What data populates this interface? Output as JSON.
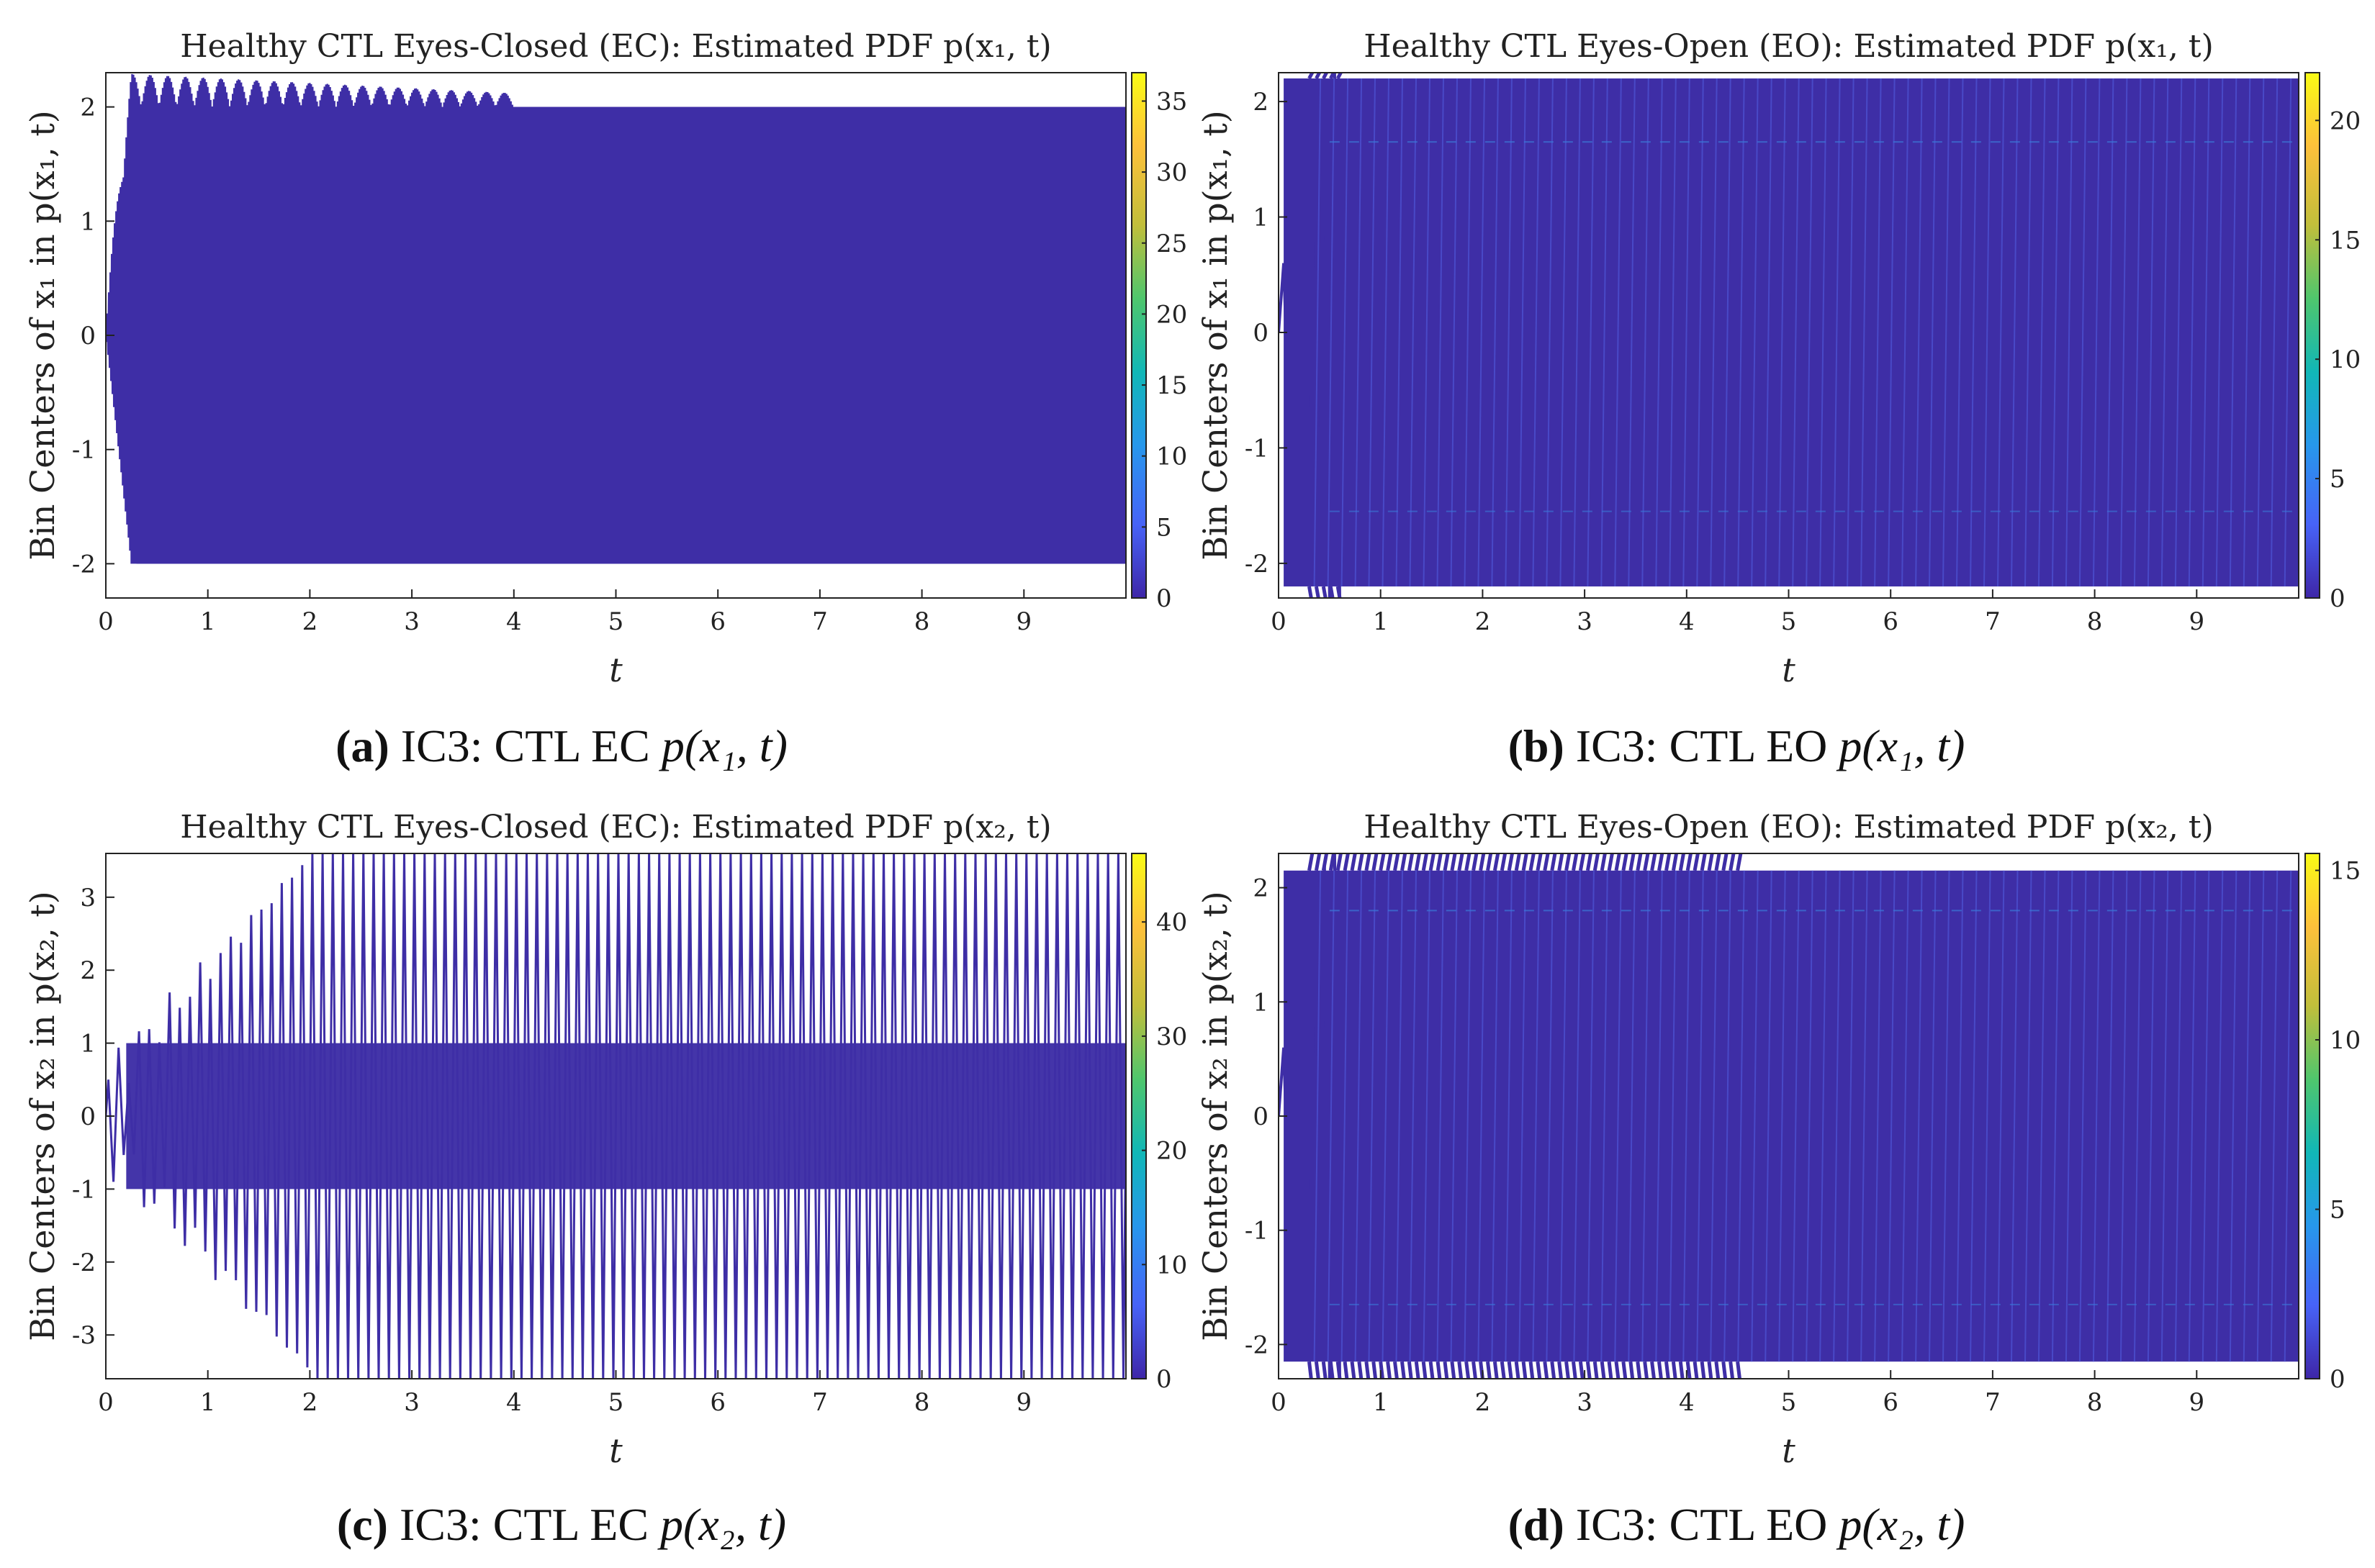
{
  "figure": {
    "colormap": [
      "#3e26a8",
      "#4763f7",
      "#2797ec",
      "#11b7b7",
      "#4fc66d",
      "#c1be3b",
      "#fdc03b",
      "#f9fb15"
    ],
    "line_color": "#3e2ea6"
  },
  "chart_data": [
    {
      "id": "a",
      "type": "heatmap",
      "title_prefix": "Healthy CTL Eyes-Closed (EC): Estimated PDF",
      "title_math": "p(x₁, t)",
      "xlabel": "t",
      "ylabel": "Bin Centers of x₁ in p(x₁, t)",
      "xlim": [
        0,
        10
      ],
      "ylim": [
        -2.3,
        2.3
      ],
      "xticks": [
        "0",
        "1",
        "2",
        "3",
        "4",
        "5",
        "6",
        "7",
        "8",
        "9"
      ],
      "yticks": [
        {
          "v": -2,
          "label": "-2"
        },
        {
          "v": -1,
          "label": "-1"
        },
        {
          "v": 0,
          "label": "0"
        },
        {
          "v": 1,
          "label": "1"
        },
        {
          "v": 2,
          "label": "2"
        }
      ],
      "colorbar": {
        "max": 37,
        "ticks": [
          "0",
          "5",
          "10",
          "15",
          "20",
          "25",
          "30",
          "35"
        ],
        "tick_values": [
          0,
          5,
          10,
          15,
          20,
          25,
          30,
          35
        ]
      },
      "signal": {
        "steady_amplitude": 2.0,
        "band_upper": 2.0,
        "band_lower": -2.0,
        "overshoot_max": 2.3,
        "overshoot_until": 4.0,
        "pattern": "dense"
      },
      "caption": {
        "label": "(a)",
        "text": "IC3: CTL EC",
        "math": "p(x₁, t)"
      }
    },
    {
      "id": "b",
      "type": "heatmap",
      "title_prefix": "Healthy CTL Eyes-Open (EO): Estimated PDF",
      "title_math": "p(x₁, t)",
      "xlabel": "t",
      "ylabel": "Bin Centers of x₁ in p(x₁, t)",
      "xlim": [
        0,
        10
      ],
      "ylim": [
        -2.3,
        2.25
      ],
      "xticks": [
        "0",
        "1",
        "2",
        "3",
        "4",
        "5",
        "6",
        "7",
        "8",
        "9"
      ],
      "yticks": [
        {
          "v": -2,
          "label": "-2"
        },
        {
          "v": -1,
          "label": "-1"
        },
        {
          "v": 0,
          "label": "0"
        },
        {
          "v": 1,
          "label": "1"
        },
        {
          "v": 2,
          "label": "2"
        }
      ],
      "colorbar": {
        "max": 22,
        "ticks": [
          "0",
          "5",
          "10",
          "15",
          "20"
        ],
        "tick_values": [
          0,
          5,
          10,
          15,
          20
        ]
      },
      "signal": {
        "steady_amplitude": 2.2,
        "band_upper": 1.65,
        "band_lower": -1.55,
        "overshoot_max": 2.3,
        "overshoot_until": 0.6,
        "pattern": "sawtooth"
      },
      "caption": {
        "label": "(b)",
        "text": "IC3: CTL EO",
        "math": "p(x₁, t)"
      }
    },
    {
      "id": "c",
      "type": "heatmap",
      "title_prefix": "Healthy CTL Eyes-Closed (EC): Estimated PDF",
      "title_math": "p(x₂, t)",
      "xlabel": "t",
      "ylabel": "Bin Centers of x₂ in p(x₂, t)",
      "xlim": [
        0,
        10
      ],
      "ylim": [
        -3.6,
        3.6
      ],
      "xticks": [
        "0",
        "1",
        "2",
        "3",
        "4",
        "5",
        "6",
        "7",
        "8",
        "9"
      ],
      "yticks": [
        {
          "v": -3,
          "label": "-3"
        },
        {
          "v": -2,
          "label": "-2"
        },
        {
          "v": -1,
          "label": "-1"
        },
        {
          "v": 0,
          "label": "0"
        },
        {
          "v": 1,
          "label": "1"
        },
        {
          "v": 2,
          "label": "2"
        },
        {
          "v": 3,
          "label": "3"
        }
      ],
      "colorbar": {
        "max": 46,
        "ticks": [
          "0",
          "10",
          "20",
          "30",
          "40"
        ],
        "tick_values": [
          0,
          10,
          20,
          30,
          40
        ]
      },
      "signal": {
        "steady_amplitude": 3.6,
        "band_upper": 1.0,
        "band_lower": -1.0,
        "overshoot_max": 3.6,
        "overshoot_until": 2.0,
        "pattern": "spikes"
      },
      "caption": {
        "label": "(c)",
        "text": "IC3: CTL EC",
        "math": "p(x₂, t)"
      }
    },
    {
      "id": "d",
      "type": "heatmap",
      "title_prefix": "Healthy CTL Eyes-Open (EO): Estimated PDF",
      "title_math": "p(x₂, t)",
      "xlabel": "t",
      "ylabel": "Bin Centers of x₂ in p(x₂, t)",
      "xlim": [
        0,
        10
      ],
      "ylim": [
        -2.3,
        2.3
      ],
      "xticks": [
        "0",
        "1",
        "2",
        "3",
        "4",
        "5",
        "6",
        "7",
        "8",
        "9"
      ],
      "yticks": [
        {
          "v": -2,
          "label": "-2"
        },
        {
          "v": -1,
          "label": "-1"
        },
        {
          "v": 0,
          "label": "0"
        },
        {
          "v": 1,
          "label": "1"
        },
        {
          "v": 2,
          "label": "2"
        }
      ],
      "colorbar": {
        "max": 15.5,
        "ticks": [
          "0",
          "5",
          "10",
          "15"
        ],
        "tick_values": [
          0,
          5,
          10,
          15
        ]
      },
      "signal": {
        "steady_amplitude": 2.15,
        "band_upper": 1.8,
        "band_lower": -1.65,
        "overshoot_max": 2.3,
        "overshoot_until": 4.5,
        "pattern": "sawtooth"
      },
      "caption": {
        "label": "(d)",
        "text": "IC3: CTL EO",
        "math": "p(x₂, t)"
      }
    }
  ]
}
